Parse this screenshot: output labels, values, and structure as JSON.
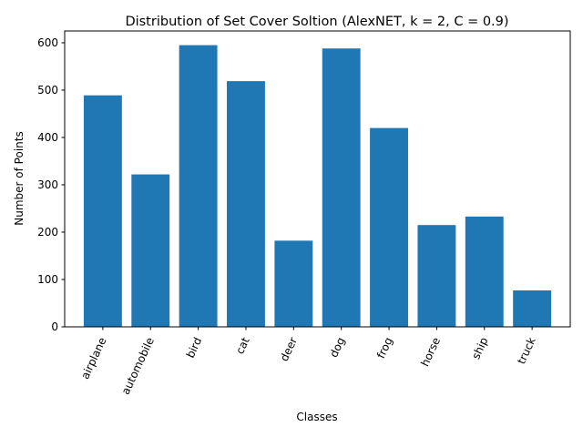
{
  "chart_data": {
    "type": "bar",
    "title": "Distribution of Set Cover Soltion (AlexNET, k = 2, C = 0.9)",
    "xlabel": "Classes",
    "ylabel": "Number of Points",
    "categories": [
      "airplane",
      "automobile",
      "bird",
      "cat",
      "deer",
      "dog",
      "frog",
      "horse",
      "ship",
      "truck"
    ],
    "values": [
      489,
      322,
      595,
      519,
      182,
      588,
      420,
      215,
      233,
      77
    ],
    "ylim": [
      0,
      625
    ],
    "yticks": [
      0,
      100,
      200,
      300,
      400,
      500,
      600
    ],
    "bar_color": "#1f77b4",
    "grid": false,
    "legend": "none",
    "xtick_rotation": 65
  }
}
